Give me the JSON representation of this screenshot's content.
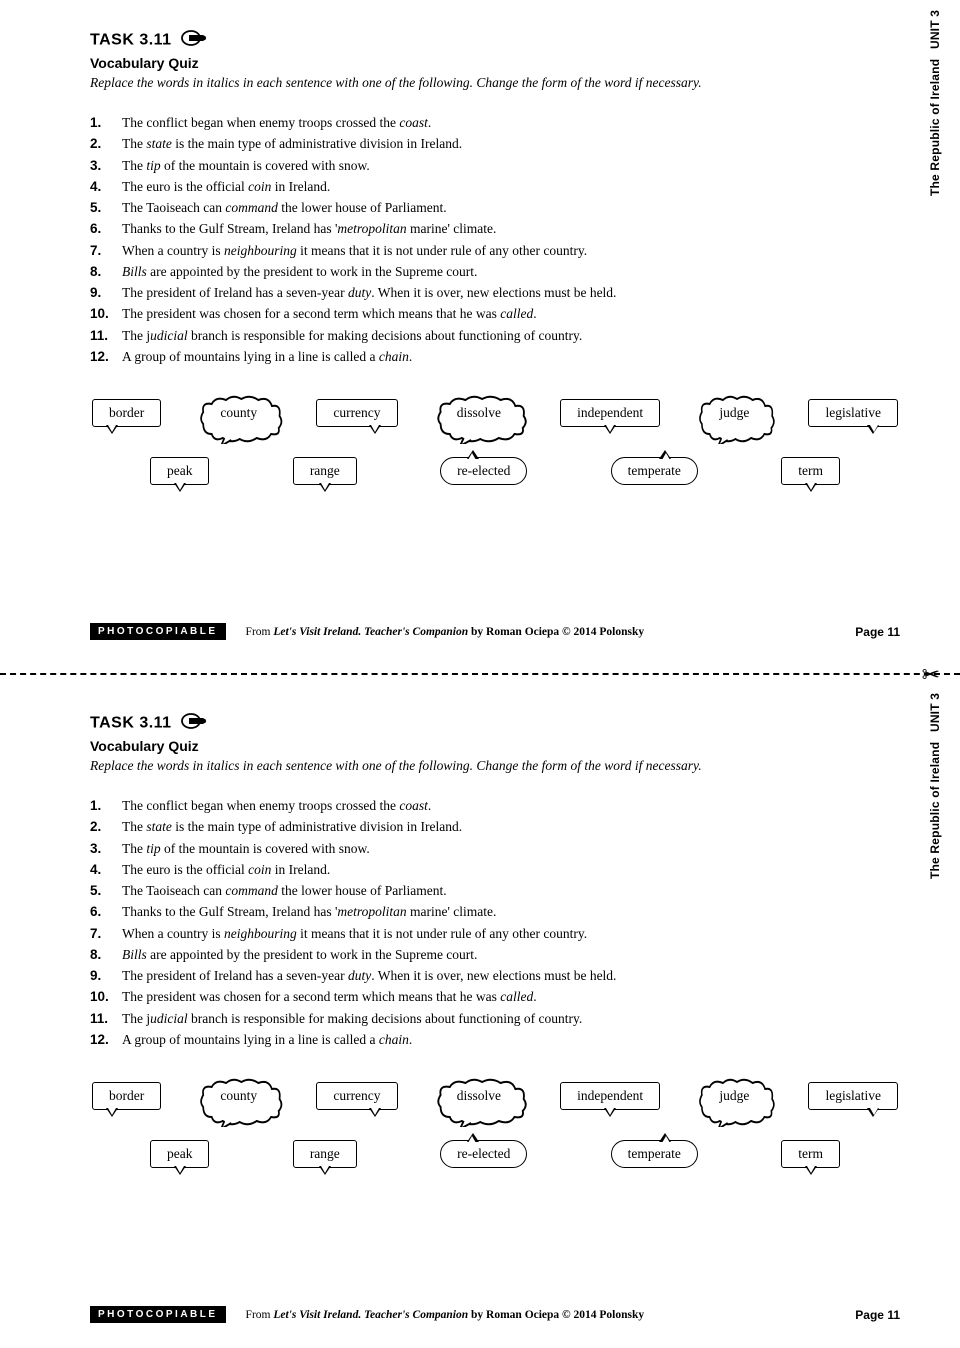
{
  "side_label": {
    "unit": "UNIT 3",
    "title": "The Republic of Ireland"
  },
  "task": {
    "number": "TASK 3.11",
    "subtitle": "Vocabulary Quiz",
    "instructions": "Replace the words in italics in each sentence with one of the following. Change the form of the word if necessary."
  },
  "items": [
    {
      "pre": "The conflict began when enemy troops crossed the ",
      "it": "coast",
      "post": "."
    },
    {
      "pre": "The ",
      "it": "state",
      "post": " is the main type of administrative division in Ireland."
    },
    {
      "pre": "The ",
      "it": "tip",
      "post": " of the mountain is covered with snow."
    },
    {
      "pre": "The euro is the official ",
      "it": "coin",
      "post": " in Ireland."
    },
    {
      "pre": "The Taoiseach can ",
      "it": "command",
      "post": " the lower house of Parliament."
    },
    {
      "pre": "Thanks to the Gulf Stream, Ireland has '",
      "it": "metropolitan",
      "post": " marine' climate."
    },
    {
      "pre": "When a country is ",
      "it": "neighbouring",
      "post": " it means that it is not under rule of any other country."
    },
    {
      "pre": "",
      "it": "Bills",
      "post": " are appointed by the president to work in the Supreme court."
    },
    {
      "pre": "The president of Ireland has a seven-year ",
      "it": "duty",
      "post": ". When it is over, new elections must be held."
    },
    {
      "pre": "The president was chosen for a second term which means that he was ",
      "it": "called",
      "post": "."
    },
    {
      "pre": "The j",
      "it": "udicial",
      "post": " branch is responsible for making decisions about functioning of country."
    },
    {
      "pre": "A group of mountains lying in a line is called a ",
      "it": "chain",
      "post": "."
    }
  ],
  "words_row1": [
    "border",
    "county",
    "currency",
    "dissolve",
    "independent",
    "judge",
    "legislative"
  ],
  "words_row2": [
    "peak",
    "range",
    "re-elected",
    "temperate",
    "term"
  ],
  "bubble_styles_row1": [
    {
      "shape": "rect",
      "tail": "tail-left20"
    },
    {
      "shape": "cloud"
    },
    {
      "shape": "rect",
      "tail": "tail-right20"
    },
    {
      "shape": "cloud"
    },
    {
      "shape": "rect",
      "tail": "tail-left50"
    },
    {
      "shape": "cloud"
    },
    {
      "shape": "rect",
      "tail": "tail-right20"
    }
  ],
  "bubble_styles_row2": [
    {
      "shape": "rect",
      "tail": "tail-left50"
    },
    {
      "shape": "rect",
      "tail": "tail-left50"
    },
    {
      "shape": "rounded",
      "tail": "tail-top tail-left30"
    },
    {
      "shape": "rounded",
      "tail": "tail-top tail-right30"
    },
    {
      "shape": "rect",
      "tail": "tail-left50"
    }
  ],
  "footer": {
    "photocopiable": "PHOTOCOPIABLE",
    "from": "From ",
    "book_title": "Let's Visit Ireland. Teacher's Companion",
    "by": " by Roman Ociepa © 2014 Polonsky",
    "page": "Page 11"
  }
}
